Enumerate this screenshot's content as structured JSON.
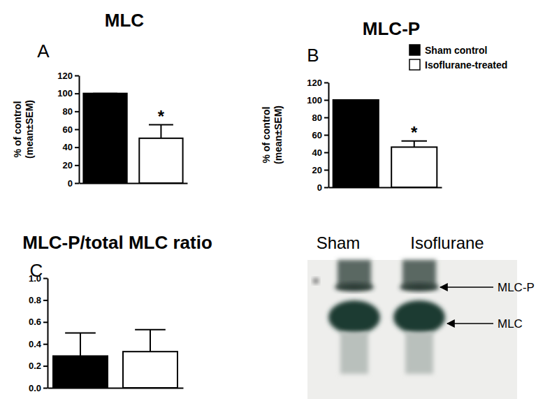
{
  "chart_data": [
    {
      "type": "bar",
      "panel": "A",
      "title": "MLC",
      "ylabel": [
        "% of control",
        "(mean±SEM)"
      ],
      "categories": [
        null
      ],
      "series": [
        {
          "color": "#000000",
          "values": [
            100
          ],
          "errors": [
            0
          ]
        },
        {
          "color": "#ffffff",
          "values": [
            50
          ],
          "errors": [
            15
          ]
        }
      ],
      "annotations": [
        {
          "text": "*",
          "series": 1
        }
      ],
      "ylim": [
        0,
        120
      ],
      "yticks": [
        0,
        20,
        40,
        60,
        80,
        100,
        120
      ]
    },
    {
      "type": "bar",
      "panel": "B",
      "title": "MLC-P",
      "ylabel": [
        "% of control",
        "(mean±SEM)"
      ],
      "categories": [
        null
      ],
      "series": [
        {
          "name": "Sham control",
          "color": "#000000",
          "values": [
            100
          ],
          "errors": [
            0
          ]
        },
        {
          "name": "Isoflurane-treated",
          "color": "#ffffff",
          "values": [
            46
          ],
          "errors": [
            7
          ]
        }
      ],
      "annotations": [
        {
          "text": "*",
          "series": 1
        }
      ],
      "legend": "top-right",
      "ylim": [
        0,
        120
      ],
      "yticks": [
        0,
        20,
        40,
        60,
        80,
        100,
        120
      ]
    },
    {
      "type": "bar",
      "panel": "C",
      "title": "MLC-P/total MLC ratio",
      "categories": [
        null
      ],
      "series": [
        {
          "color": "#000000",
          "values": [
            0.29
          ],
          "errors": [
            0.21
          ]
        },
        {
          "color": "#ffffff",
          "values": [
            0.33
          ],
          "errors": [
            0.2
          ]
        }
      ],
      "ylim": [
        0,
        1.0
      ],
      "yticks": [
        {
          "value": 0,
          "label": "0.0"
        },
        {
          "value": 0.2,
          "label": "0.2"
        },
        {
          "value": 0.4,
          "label": "0.4"
        },
        {
          "value": 0.6,
          "label": "0.6"
        },
        {
          "value": 0.8,
          "label": "0.8"
        },
        {
          "value": 1.0,
          "label": "1.0"
        }
      ]
    }
  ],
  "blot": {
    "lanes": [
      "Sham",
      "Isoflurane"
    ],
    "bands": [
      "MLC-P",
      "MLC"
    ]
  }
}
